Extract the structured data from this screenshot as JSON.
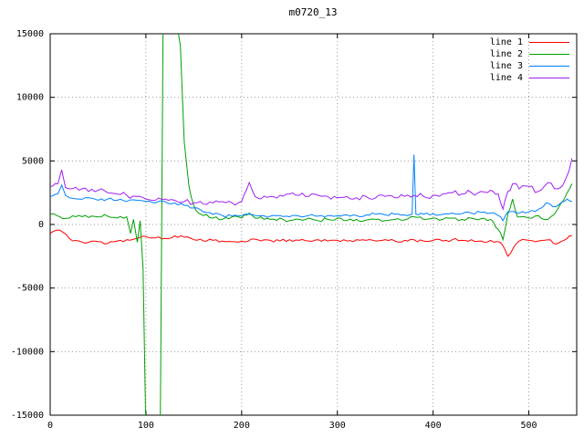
{
  "title": "m0720_13",
  "chart_data": {
    "type": "line",
    "title": "m0720_13",
    "xlabel": "",
    "ylabel": "",
    "xlim": [
      0,
      550
    ],
    "ylim": [
      -15000,
      15000
    ],
    "xticks": [
      0,
      100,
      200,
      300,
      400,
      500
    ],
    "yticks": [
      -15000,
      -10000,
      -5000,
      0,
      5000,
      10000,
      15000
    ],
    "grid": true,
    "legend_position": "top-right",
    "series": [
      {
        "name": "line 1",
        "color": "#ff0000",
        "noise": 130,
        "points": [
          [
            0,
            -700
          ],
          [
            10,
            -450
          ],
          [
            20,
            -1100
          ],
          [
            30,
            -1300
          ],
          [
            40,
            -1400
          ],
          [
            50,
            -1350
          ],
          [
            60,
            -1500
          ],
          [
            70,
            -1300
          ],
          [
            80,
            -1200
          ],
          [
            90,
            -1100
          ],
          [
            100,
            -950
          ],
          [
            110,
            -1050
          ],
          [
            120,
            -1100
          ],
          [
            130,
            -900
          ],
          [
            140,
            -1000
          ],
          [
            150,
            -1200
          ],
          [
            160,
            -1300
          ],
          [
            170,
            -1250
          ],
          [
            180,
            -1300
          ],
          [
            190,
            -1350
          ],
          [
            200,
            -1300
          ],
          [
            210,
            -1150
          ],
          [
            220,
            -1300
          ],
          [
            230,
            -1250
          ],
          [
            240,
            -1300
          ],
          [
            250,
            -1200
          ],
          [
            260,
            -1250
          ],
          [
            270,
            -1300
          ],
          [
            280,
            -1200
          ],
          [
            290,
            -1300
          ],
          [
            300,
            -1250
          ],
          [
            310,
            -1300
          ],
          [
            320,
            -1200
          ],
          [
            330,
            -1250
          ],
          [
            340,
            -1300
          ],
          [
            350,
            -1200
          ],
          [
            360,
            -1300
          ],
          [
            370,
            -1250
          ],
          [
            380,
            -1200
          ],
          [
            390,
            -1300
          ],
          [
            400,
            -1250
          ],
          [
            410,
            -1300
          ],
          [
            420,
            -1200
          ],
          [
            430,
            -1250
          ],
          [
            440,
            -1200
          ],
          [
            450,
            -1300
          ],
          [
            460,
            -1250
          ],
          [
            470,
            -1400
          ],
          [
            478,
            -2500
          ],
          [
            484,
            -1800
          ],
          [
            490,
            -1300
          ],
          [
            500,
            -1250
          ],
          [
            510,
            -1300
          ],
          [
            520,
            -1200
          ],
          [
            528,
            -1550
          ],
          [
            535,
            -1300
          ],
          [
            540,
            -1100
          ],
          [
            545,
            -900
          ]
        ]
      },
      {
        "name": "line 2",
        "color": "#00a000",
        "noise": 150,
        "points": [
          [
            0,
            800
          ],
          [
            10,
            600
          ],
          [
            20,
            500
          ],
          [
            30,
            700
          ],
          [
            40,
            550
          ],
          [
            50,
            600
          ],
          [
            60,
            650
          ],
          [
            70,
            500
          ],
          [
            80,
            600
          ],
          [
            84,
            -700
          ],
          [
            87,
            400
          ],
          [
            91,
            -1400
          ],
          [
            94,
            300
          ],
          [
            97,
            -3500
          ],
          [
            100,
            -16500
          ],
          [
            115,
            -16500
          ],
          [
            118,
            16500
          ],
          [
            131,
            16500
          ],
          [
            136,
            14000
          ],
          [
            140,
            6500
          ],
          [
            145,
            3000
          ],
          [
            150,
            1500
          ],
          [
            155,
            900
          ],
          [
            160,
            700
          ],
          [
            170,
            500
          ],
          [
            180,
            400
          ],
          [
            190,
            600
          ],
          [
            200,
            500
          ],
          [
            208,
            900
          ],
          [
            214,
            500
          ],
          [
            220,
            600
          ],
          [
            230,
            400
          ],
          [
            240,
            500
          ],
          [
            250,
            300
          ],
          [
            260,
            400
          ],
          [
            270,
            500
          ],
          [
            280,
            300
          ],
          [
            290,
            400
          ],
          [
            300,
            500
          ],
          [
            310,
            300
          ],
          [
            320,
            400
          ],
          [
            330,
            350
          ],
          [
            340,
            400
          ],
          [
            350,
            300
          ],
          [
            360,
            400
          ],
          [
            370,
            350
          ],
          [
            380,
            600
          ],
          [
            390,
            400
          ],
          [
            400,
            500
          ],
          [
            410,
            400
          ],
          [
            420,
            500
          ],
          [
            430,
            400
          ],
          [
            440,
            500
          ],
          [
            450,
            450
          ],
          [
            460,
            400
          ],
          [
            468,
            -400
          ],
          [
            473,
            -1200
          ],
          [
            478,
            800
          ],
          [
            483,
            2000
          ],
          [
            488,
            600
          ],
          [
            500,
            500
          ],
          [
            510,
            700
          ],
          [
            520,
            400
          ],
          [
            530,
            1200
          ],
          [
            540,
            2500
          ],
          [
            545,
            3200
          ]
        ]
      },
      {
        "name": "line 3",
        "color": "#0080ff",
        "noise": 120,
        "points": [
          [
            0,
            2200
          ],
          [
            8,
            2400
          ],
          [
            12,
            3100
          ],
          [
            16,
            2300
          ],
          [
            20,
            2100
          ],
          [
            30,
            2000
          ],
          [
            40,
            2100
          ],
          [
            50,
            1900
          ],
          [
            60,
            2000
          ],
          [
            70,
            1900
          ],
          [
            80,
            1800
          ],
          [
            90,
            1900
          ],
          [
            100,
            1800
          ],
          [
            110,
            1700
          ],
          [
            120,
            1800
          ],
          [
            130,
            1700
          ],
          [
            140,
            1500
          ],
          [
            150,
            1300
          ],
          [
            160,
            1000
          ],
          [
            170,
            800
          ],
          [
            180,
            700
          ],
          [
            190,
            650
          ],
          [
            200,
            700
          ],
          [
            210,
            800
          ],
          [
            220,
            700
          ],
          [
            230,
            650
          ],
          [
            240,
            700
          ],
          [
            250,
            600
          ],
          [
            260,
            650
          ],
          [
            270,
            700
          ],
          [
            280,
            650
          ],
          [
            290,
            700
          ],
          [
            300,
            700
          ],
          [
            310,
            750
          ],
          [
            320,
            700
          ],
          [
            330,
            750
          ],
          [
            340,
            800
          ],
          [
            350,
            750
          ],
          [
            360,
            800
          ],
          [
            370,
            750
          ],
          [
            378,
            800
          ],
          [
            380,
            5500
          ],
          [
            382,
            800
          ],
          [
            390,
            800
          ],
          [
            400,
            850
          ],
          [
            410,
            800
          ],
          [
            420,
            900
          ],
          [
            430,
            850
          ],
          [
            440,
            900
          ],
          [
            450,
            950
          ],
          [
            460,
            900
          ],
          [
            468,
            700
          ],
          [
            473,
            300
          ],
          [
            478,
            1000
          ],
          [
            490,
            900
          ],
          [
            500,
            1000
          ],
          [
            510,
            1200
          ],
          [
            518,
            1700
          ],
          [
            525,
            1400
          ],
          [
            532,
            1600
          ],
          [
            540,
            2000
          ],
          [
            545,
            1800
          ]
        ]
      },
      {
        "name": "line 4",
        "color": "#a020f0",
        "noise": 230,
        "points": [
          [
            0,
            3000
          ],
          [
            8,
            3200
          ],
          [
            12,
            4300
          ],
          [
            16,
            2900
          ],
          [
            20,
            2800
          ],
          [
            30,
            2700
          ],
          [
            40,
            2600
          ],
          [
            50,
            2700
          ],
          [
            60,
            2500
          ],
          [
            70,
            2400
          ],
          [
            80,
            2300
          ],
          [
            90,
            2200
          ],
          [
            100,
            2000
          ],
          [
            110,
            1900
          ],
          [
            120,
            2000
          ],
          [
            130,
            1900
          ],
          [
            140,
            1800
          ],
          [
            150,
            1700
          ],
          [
            160,
            1600
          ],
          [
            170,
            1700
          ],
          [
            180,
            1800
          ],
          [
            190,
            1700
          ],
          [
            200,
            1800
          ],
          [
            208,
            3300
          ],
          [
            214,
            2200
          ],
          [
            220,
            2000
          ],
          [
            230,
            2200
          ],
          [
            240,
            2300
          ],
          [
            250,
            2400
          ],
          [
            260,
            2300
          ],
          [
            270,
            2200
          ],
          [
            280,
            2300
          ],
          [
            290,
            2200
          ],
          [
            300,
            2100
          ],
          [
            310,
            2200
          ],
          [
            320,
            2100
          ],
          [
            330,
            2200
          ],
          [
            340,
            2100
          ],
          [
            350,
            2200
          ],
          [
            360,
            2100
          ],
          [
            370,
            2200
          ],
          [
            380,
            2300
          ],
          [
            390,
            2200
          ],
          [
            400,
            2300
          ],
          [
            410,
            2400
          ],
          [
            420,
            2500
          ],
          [
            430,
            2400
          ],
          [
            440,
            2500
          ],
          [
            450,
            2600
          ],
          [
            460,
            2700
          ],
          [
            468,
            2400
          ],
          [
            473,
            1200
          ],
          [
            478,
            2600
          ],
          [
            483,
            3200
          ],
          [
            490,
            2800
          ],
          [
            500,
            3000
          ],
          [
            510,
            2600
          ],
          [
            520,
            3300
          ],
          [
            530,
            2800
          ],
          [
            538,
            3500
          ],
          [
            542,
            4200
          ],
          [
            545,
            5200
          ]
        ]
      }
    ]
  }
}
